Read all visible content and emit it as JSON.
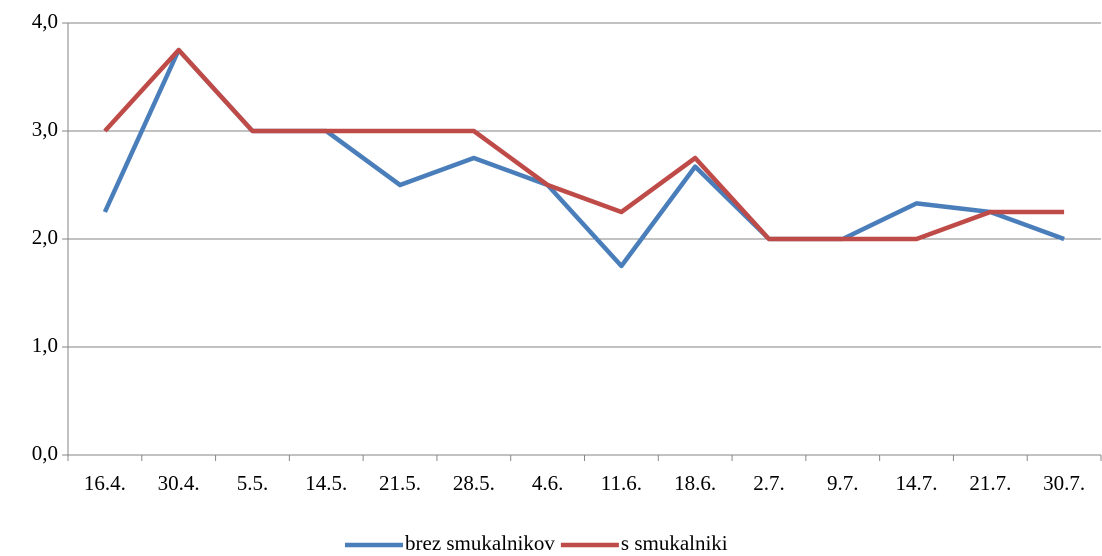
{
  "chart_data": {
    "type": "line",
    "categories": [
      "16.4.",
      "30.4.",
      "5.5.",
      "14.5.",
      "21.5.",
      "28.5.",
      "4.6.",
      "11.6.",
      "18.6.",
      "2.7.",
      "9.7.",
      "14.7.",
      "21.7.",
      "30.7."
    ],
    "series": [
      {
        "name": "brez smukalnikov",
        "color": "#4a7ebb",
        "values": [
          2.25,
          3.75,
          3.0,
          3.0,
          2.5,
          2.75,
          2.5,
          1.75,
          2.67,
          2.0,
          2.0,
          2.33,
          2.25,
          2.0
        ]
      },
      {
        "name": "s smukalniki",
        "color": "#be4b48",
        "values": [
          3.0,
          3.75,
          3.0,
          3.0,
          3.0,
          3.0,
          2.5,
          2.25,
          2.75,
          2.0,
          2.0,
          2.0,
          2.25,
          2.25
        ]
      }
    ],
    "ylim": [
      0,
      4
    ],
    "yticks": [
      {
        "value": 0,
        "label": "0,0"
      },
      {
        "value": 1,
        "label": "1,0"
      },
      {
        "value": 2,
        "label": "2,0"
      },
      {
        "value": 3,
        "label": "3,0"
      },
      {
        "value": 4,
        "label": "4,0"
      }
    ],
    "grid": true,
    "legend": "bottom"
  }
}
